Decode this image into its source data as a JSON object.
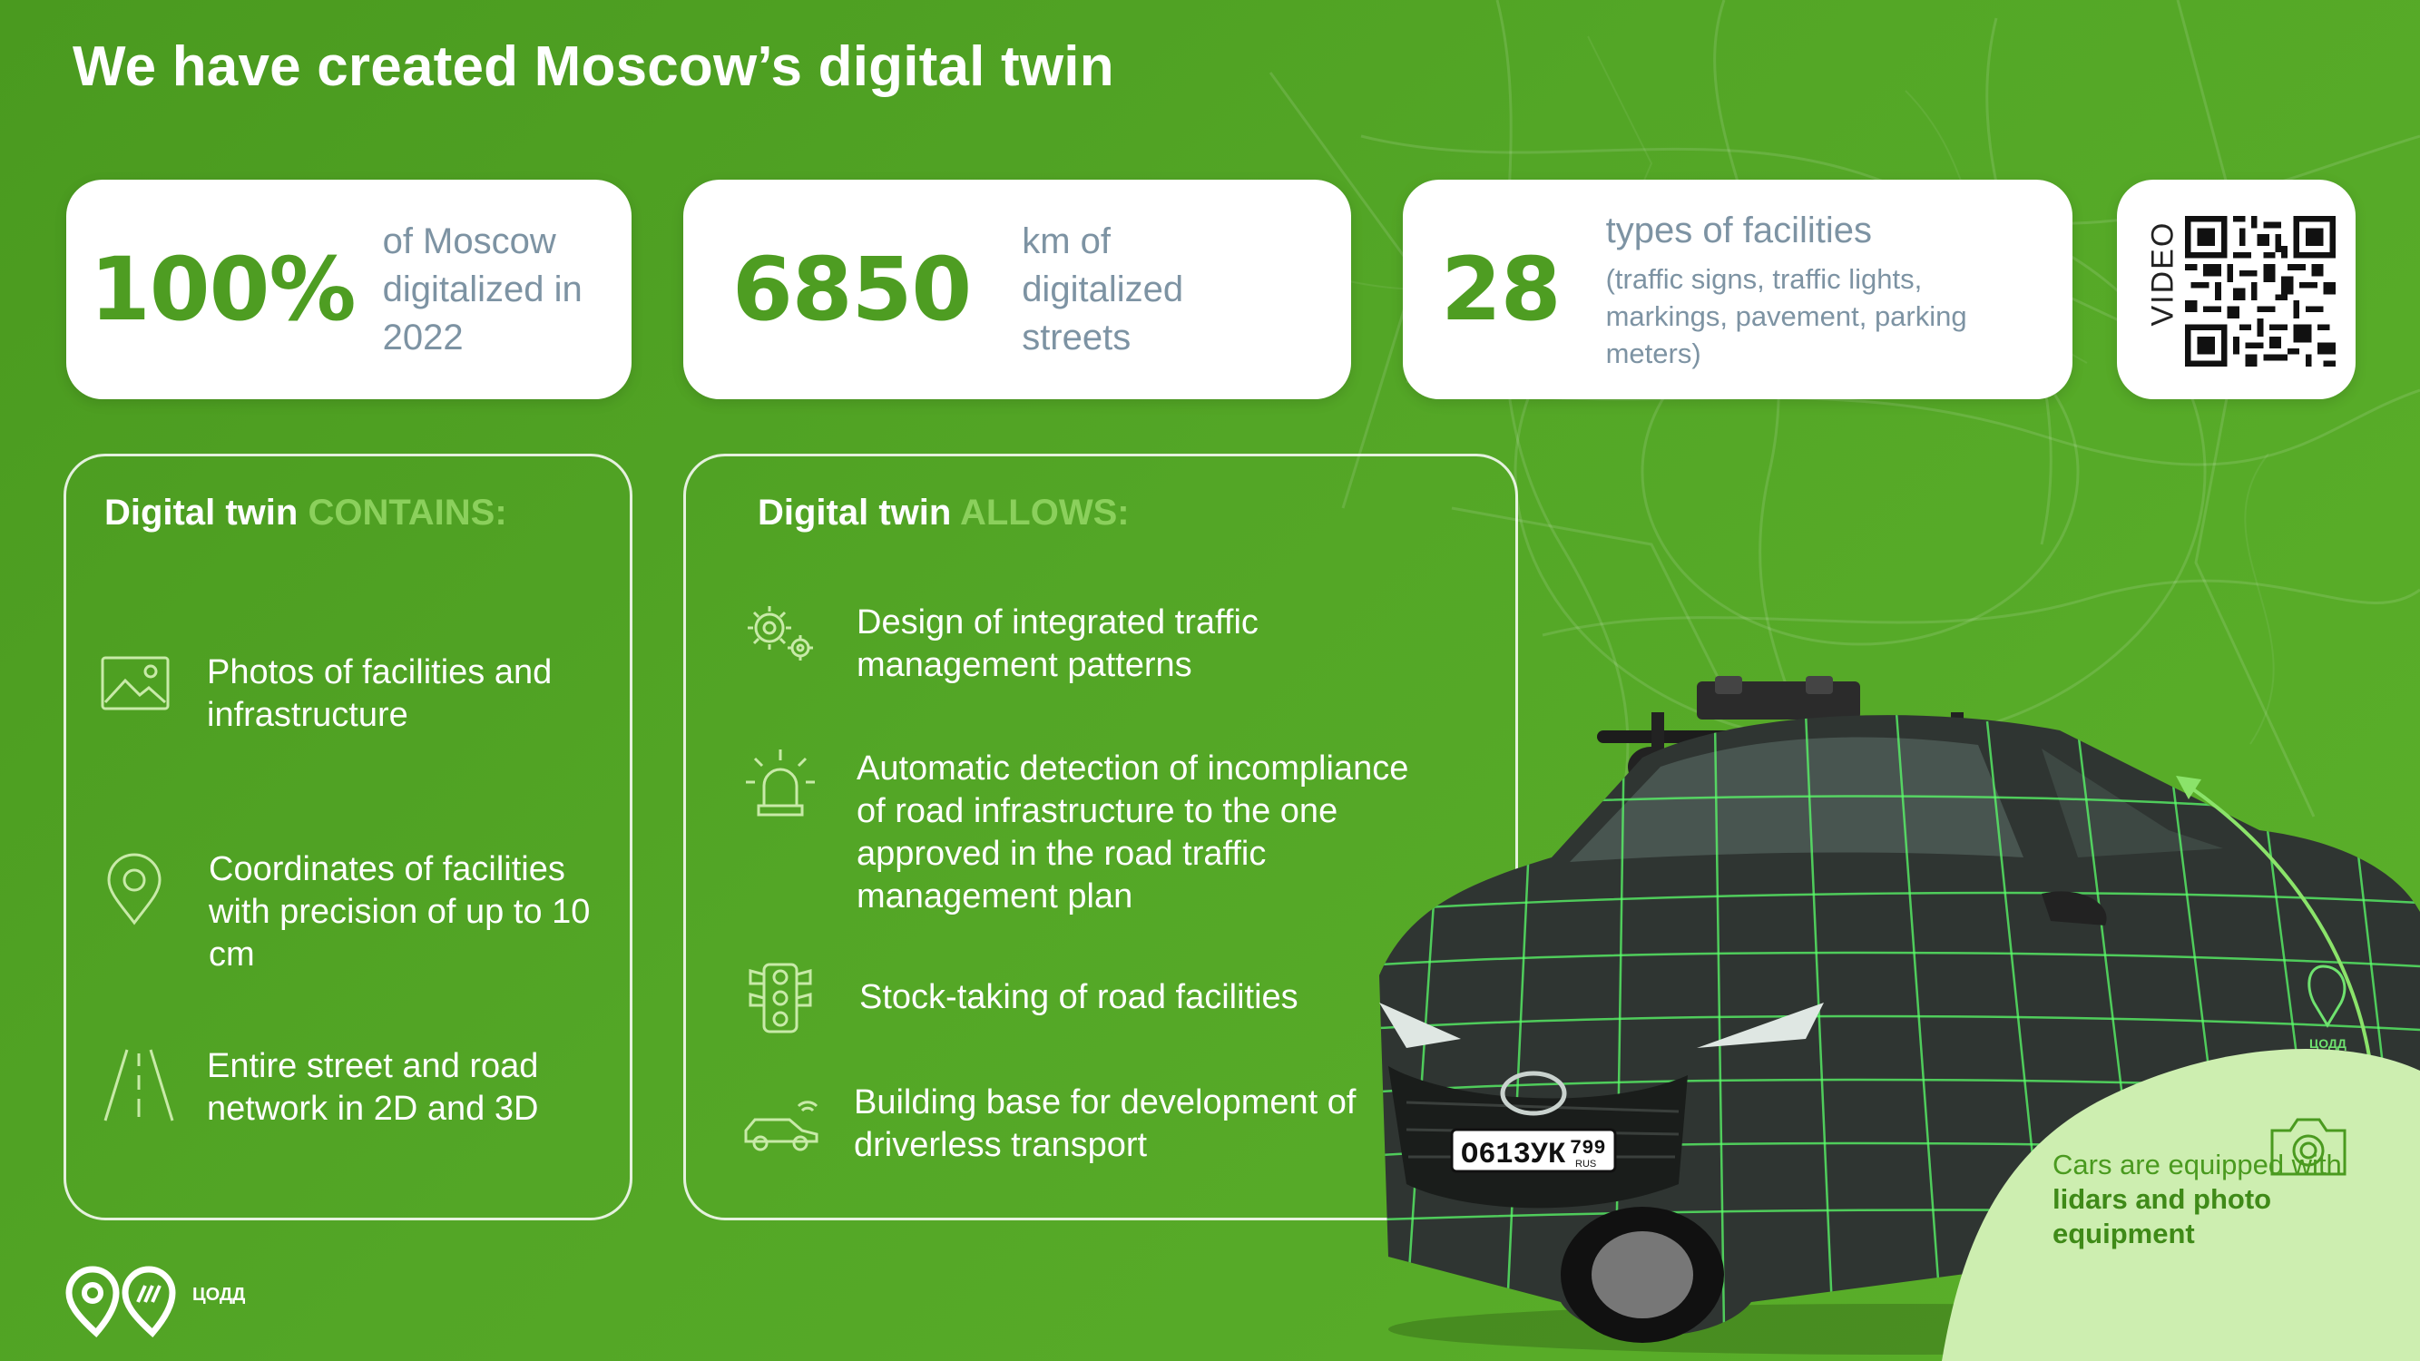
{
  "title": "We have created Moscow’s digital twin",
  "stats": [
    {
      "number": "100%",
      "text": "of Moscow digitalized in 2022"
    },
    {
      "number": "6850",
      "text": "km of digitalized streets"
    },
    {
      "number": "28",
      "text": "types of facilities",
      "sub": "(traffic signs, traffic lights, markings, pavement, parking meters)"
    }
  ],
  "qr": {
    "label": "VIDEO"
  },
  "contains": {
    "head_white": "Digital twin ",
    "head_accent": "CONTAINS:",
    "items": [
      {
        "icon": "image-icon",
        "text": "Photos of facilities and infrastructure"
      },
      {
        "icon": "location-pin-icon",
        "text": "Coordinates of facilities with precision of up to 10 cm"
      },
      {
        "icon": "road-icon",
        "text": "Entire street and road network in 2D and 3D"
      }
    ]
  },
  "allows": {
    "head_white": "Digital twin ",
    "head_accent": "ALLOWS:",
    "items": [
      {
        "icon": "gears-icon",
        "text": "Design of integrated traffic management patterns"
      },
      {
        "icon": "siren-icon",
        "text": "Automatic detection of incompliance of road infrastructure to the one approved in the road traffic management plan"
      },
      {
        "icon": "traffic-light-icon",
        "text": "Stock-taking of road facilities"
      },
      {
        "icon": "connected-car-icon",
        "text": "Building base for development of driverless transport"
      }
    ]
  },
  "car": {
    "plate_number": "О613УК",
    "plate_region": "799",
    "plate_country": "RUS",
    "badge": "ЦОДД"
  },
  "note": {
    "prefix": "Cars are equipped with ",
    "bold": "lidars and photo equipment"
  },
  "logo": {
    "text": "ЦОДД"
  },
  "colors": {
    "green": "#53a626",
    "accent_light": "#8bd05c",
    "number_green": "#4e9d22",
    "grey_text": "#7d93a3",
    "note_bg": "#cdeeb0"
  }
}
